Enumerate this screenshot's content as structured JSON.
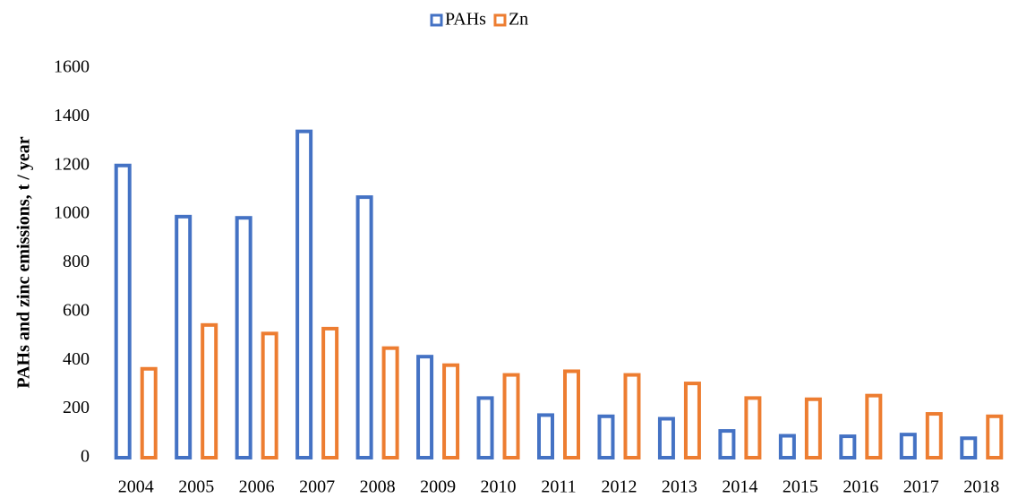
{
  "chart_data": {
    "type": "bar",
    "y_label": "PAHs and zinc emissions, t / year",
    "categories": [
      "2004",
      "2005",
      "2006",
      "2007",
      "2008",
      "2009",
      "2010",
      "2011",
      "2012",
      "2013",
      "2014",
      "2015",
      "2016",
      "2017",
      "2018"
    ],
    "series": [
      {
        "name": "PAHs",
        "color": "#4472c4",
        "values": [
          1200,
          990,
          985,
          1340,
          1070,
          415,
          245,
          175,
          170,
          160,
          110,
          90,
          88,
          95,
          80
        ]
      },
      {
        "name": "Zn",
        "color": "#ed7d31",
        "values": [
          365,
          545,
          510,
          530,
          450,
          380,
          340,
          355,
          340,
          305,
          245,
          240,
          255,
          180,
          170
        ]
      }
    ],
    "ylim": [
      0,
      1600
    ],
    "yticks": [
      0,
      200,
      400,
      600,
      800,
      1000,
      1200,
      1400,
      1600
    ],
    "legend": "top",
    "grid": false
  }
}
